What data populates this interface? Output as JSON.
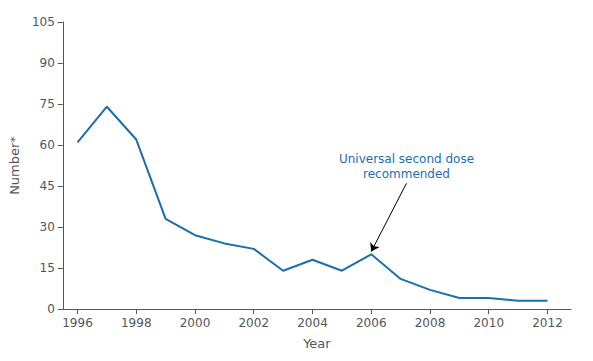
{
  "chart_data": {
    "type": "line",
    "x": [
      1996,
      1997,
      1998,
      1999,
      2000,
      2001,
      2002,
      2003,
      2004,
      2005,
      2006,
      2007,
      2008,
      2009,
      2010,
      2011,
      2012
    ],
    "values": [
      61,
      74,
      62,
      33,
      27,
      24,
      22,
      14,
      18,
      14,
      20,
      11,
      7,
      4,
      4,
      3,
      3
    ],
    "color": "#1a6faf",
    "xlabel": "Year",
    "ylabel": "Number*",
    "xlim": [
      1995.5,
      2012.8
    ],
    "ylim": [
      0,
      105
    ],
    "xticks": [
      1996,
      1998,
      2000,
      2002,
      2004,
      2006,
      2008,
      2010,
      2012
    ],
    "yticks": [
      0,
      15,
      30,
      45,
      60,
      75,
      90,
      105
    ],
    "grid": false,
    "annotations": [
      {
        "text": "Universal second dose\nrecommended",
        "x": 2006,
        "y": 21,
        "text_x": 2007.2,
        "text_y": 46,
        "color": "#1a6faf"
      }
    ]
  }
}
